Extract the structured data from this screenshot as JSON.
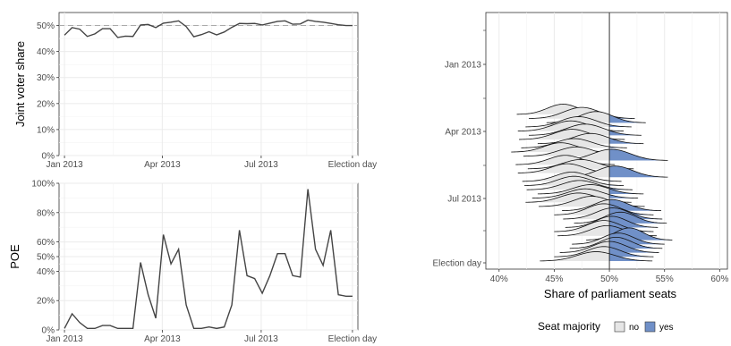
{
  "chart_data": [
    {
      "type": "line",
      "ylabel": "Joint voter share",
      "ylim": [
        0,
        55
      ],
      "yticks": [
        "0%",
        "10%",
        "20%",
        "30%",
        "40%",
        "50%"
      ],
      "yticks_values": [
        0,
        10,
        20,
        30,
        40,
        50
      ],
      "xticks": [
        "Jan 2013",
        "Apr 2013",
        "Jul 2013",
        "Election day"
      ],
      "xticks_values": [
        0,
        90,
        181,
        265
      ],
      "reference_line": 50,
      "grid": true,
      "series": [
        {
          "x": [
            0,
            7,
            14,
            21,
            28,
            35,
            42,
            49,
            56,
            63,
            70,
            77,
            84,
            91,
            98,
            105,
            112,
            119,
            126,
            133,
            140,
            147,
            154,
            161,
            168,
            175,
            182,
            189,
            196,
            203,
            210,
            217,
            224,
            231,
            238,
            245,
            252,
            259,
            265
          ],
          "y": [
            46.3,
            49.2,
            48.6,
            45.8,
            46.8,
            48.8,
            48.8,
            45.4,
            45.9,
            45.8,
            50.2,
            50.4,
            49.2,
            50.9,
            51.3,
            51.8,
            49.6,
            45.7,
            46.5,
            47.6,
            46.4,
            47.5,
            49.3,
            50.8,
            50.7,
            50.8,
            50.2,
            50.9,
            51.6,
            51.8,
            50.5,
            50.6,
            52.1,
            51.6,
            51.3,
            50.8,
            50.3,
            50.0,
            50.0
          ]
        }
      ]
    },
    {
      "type": "line",
      "ylabel": "POE",
      "ylim": [
        0,
        100
      ],
      "yticks": [
        "0%",
        "20%",
        "40%",
        "50%",
        "60%",
        "80%",
        "100%"
      ],
      "yticks_values": [
        0,
        20,
        40,
        50,
        60,
        80,
        100
      ],
      "xticks": [
        "Jan 2013",
        "Apr 2013",
        "Jul 2013",
        "Election day"
      ],
      "xticks_values": [
        0,
        90,
        181,
        265
      ],
      "grid": true,
      "series": [
        {
          "x": [
            0,
            7,
            14,
            21,
            28,
            35,
            42,
            49,
            56,
            63,
            70,
            77,
            84,
            91,
            98,
            105,
            112,
            119,
            126,
            133,
            140,
            147,
            154,
            161,
            168,
            175,
            182,
            189,
            196,
            203,
            210,
            217,
            224,
            231,
            238,
            245,
            252,
            259,
            265
          ],
          "y": [
            1,
            11,
            5,
            1,
            1,
            3,
            3,
            1,
            1,
            1,
            46,
            24,
            8,
            65,
            45,
            55,
            17,
            1,
            1,
            2,
            1,
            2,
            17,
            68,
            37,
            35,
            25,
            37,
            52,
            52,
            37,
            36,
            96,
            55,
            44,
            68,
            24,
            23,
            23
          ]
        }
      ]
    },
    {
      "type": "ridgeline",
      "xlabel": "Share of parliament seats",
      "xlim": [
        38.8,
        60.7
      ],
      "xticks": [
        "40%",
        "45%",
        "50%",
        "55%",
        "60%"
      ],
      "xticks_values": [
        40,
        45,
        50,
        55,
        60
      ],
      "yticks": [
        "Jan 2013",
        "Apr 2013",
        "Jul 2013",
        "Election day"
      ],
      "reference_line": 50,
      "legend": {
        "title": "Seat majority",
        "position": "bottom",
        "entries": [
          {
            "label": "no",
            "color": "#e6e6e6"
          },
          {
            "label": "yes",
            "color": "#7090c8"
          }
        ]
      },
      "series": [
        {
          "mean": 45.8,
          "sd": 1.4,
          "amp": 0.55
        },
        {
          "mean": 47.5,
          "sd": 1.6,
          "amp": 0.6
        },
        {
          "mean": 48.8,
          "sd": 1.5,
          "amp": 0.6
        },
        {
          "mean": 47.2,
          "sd": 1.6,
          "amp": 0.55
        },
        {
          "mean": 46.5,
          "sd": 1.6,
          "amp": 0.55
        },
        {
          "mean": 47.8,
          "sd": 1.7,
          "amp": 0.6
        },
        {
          "mean": 46.6,
          "sd": 1.6,
          "amp": 0.55
        },
        {
          "mean": 48.3,
          "sd": 1.6,
          "amp": 0.55
        },
        {
          "mean": 46.8,
          "sd": 1.6,
          "amp": 0.5
        },
        {
          "mean": 45.6,
          "sd": 1.5,
          "amp": 0.5
        },
        {
          "mean": 47.0,
          "sd": 1.6,
          "amp": 0.5
        },
        {
          "mean": 50.2,
          "sd": 1.7,
          "amp": 0.6
        },
        {
          "mean": 46.0,
          "sd": 1.5,
          "amp": 0.5
        },
        {
          "mean": 47.4,
          "sd": 1.6,
          "amp": 0.5
        },
        {
          "mean": 46.2,
          "sd": 1.5,
          "amp": 0.5
        },
        {
          "mean": 50.5,
          "sd": 1.6,
          "amp": 0.6
        },
        {
          "mean": 46.6,
          "sd": 1.5,
          "amp": 0.5
        },
        {
          "mean": 46.8,
          "sd": 1.5,
          "amp": 0.5
        },
        {
          "mean": 47.3,
          "sd": 1.6,
          "amp": 0.5
        },
        {
          "mean": 48.3,
          "sd": 1.6,
          "amp": 0.5
        },
        {
          "mean": 47.8,
          "sd": 1.6,
          "amp": 0.5
        },
        {
          "mean": 47.2,
          "sd": 1.6,
          "amp": 0.5
        },
        {
          "mean": 48.4,
          "sd": 1.6,
          "amp": 0.55
        },
        {
          "mean": 50.2,
          "sd": 1.5,
          "amp": 0.6
        },
        {
          "mean": 49.5,
          "sd": 1.5,
          "amp": 0.6
        },
        {
          "mean": 50.3,
          "sd": 1.5,
          "amp": 0.6
        },
        {
          "mean": 51.0,
          "sd": 1.4,
          "amp": 0.6
        },
        {
          "mean": 50.2,
          "sd": 1.4,
          "amp": 0.6
        },
        {
          "mean": 49.5,
          "sd": 1.5,
          "amp": 0.6
        },
        {
          "mean": 49.8,
          "sd": 1.5,
          "amp": 0.55
        },
        {
          "mean": 51.8,
          "sd": 1.3,
          "amp": 0.65
        },
        {
          "mean": 50.8,
          "sd": 1.4,
          "amp": 0.6
        },
        {
          "mean": 50.6,
          "sd": 1.4,
          "amp": 0.6
        },
        {
          "mean": 50.0,
          "sd": 1.5,
          "amp": 0.6
        },
        {
          "mean": 49.5,
          "sd": 1.5,
          "amp": 0.55
        },
        {
          "mean": 48.8,
          "sd": 1.7,
          "amp": 0.5
        }
      ]
    }
  ]
}
